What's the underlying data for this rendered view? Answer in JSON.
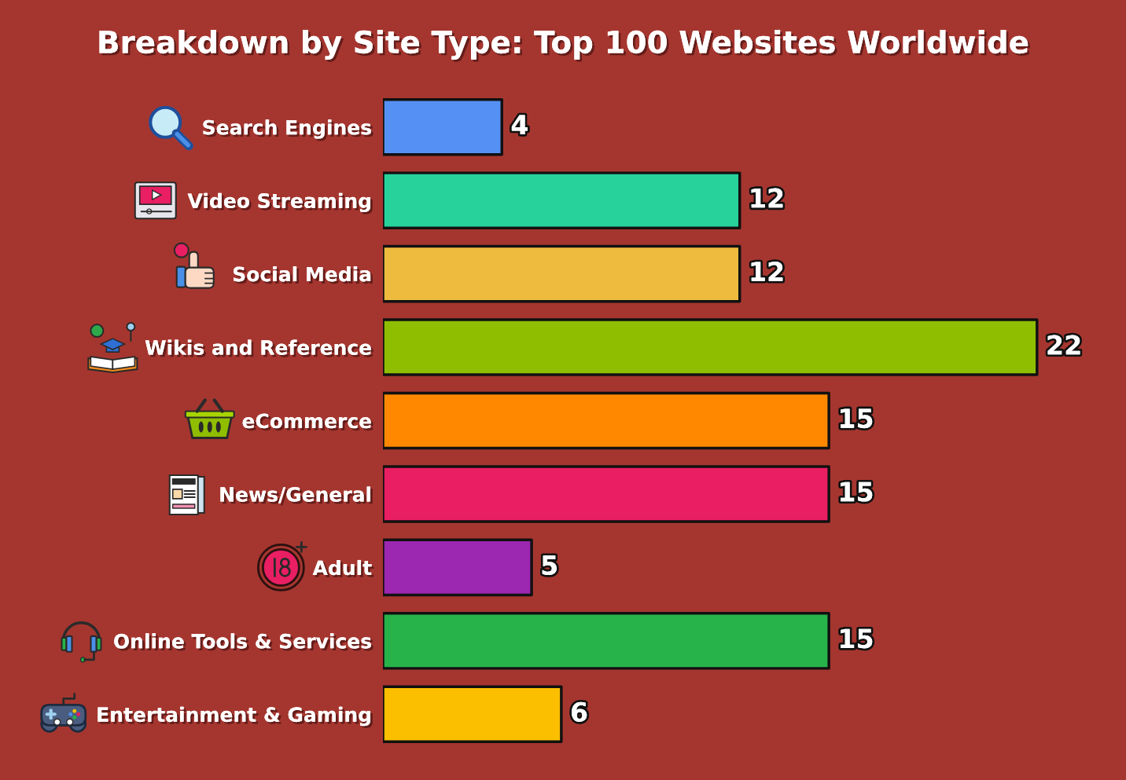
{
  "chart_data": {
    "type": "bar",
    "orientation": "horizontal",
    "title": "Breakdown by Site Type: Top 100 Websites Worldwide",
    "categories": [
      "Search Engines",
      "Video Streaming",
      "Social Media",
      "Wikis and Reference",
      "eCommerce",
      "News/General",
      "Adult",
      "Online Tools & Services",
      "Entertainment & Gaming"
    ],
    "values": [
      4,
      12,
      12,
      22,
      15,
      15,
      5,
      15,
      6
    ],
    "colors": [
      "#5591f5",
      "#27d39a",
      "#eebb3f",
      "#8fbe00",
      "#ff8800",
      "#e91e63",
      "#9c27b0",
      "#28b34a",
      "#fbbf00"
    ],
    "data_labels": true,
    "tick_labels": "y"
  }
}
